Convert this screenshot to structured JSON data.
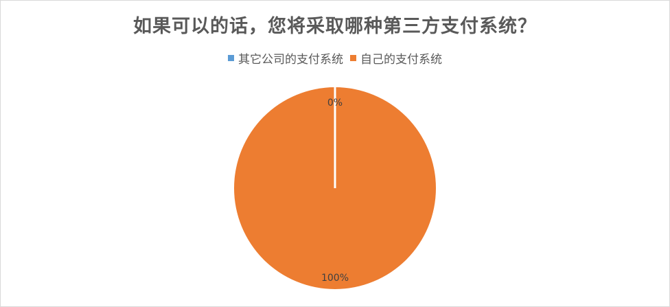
{
  "chart_data": {
    "type": "pie",
    "title": "如果可以的话，您将采取哪种第三方支付系统？",
    "legend_position": "top",
    "slices": [
      {
        "name": "其它公司的支付系统",
        "value": 0,
        "label": "0%",
        "color": "#5B9BD5"
      },
      {
        "name": "自己的支付系统",
        "value": 100,
        "label": "100%",
        "color": "#ED7D31"
      }
    ]
  }
}
